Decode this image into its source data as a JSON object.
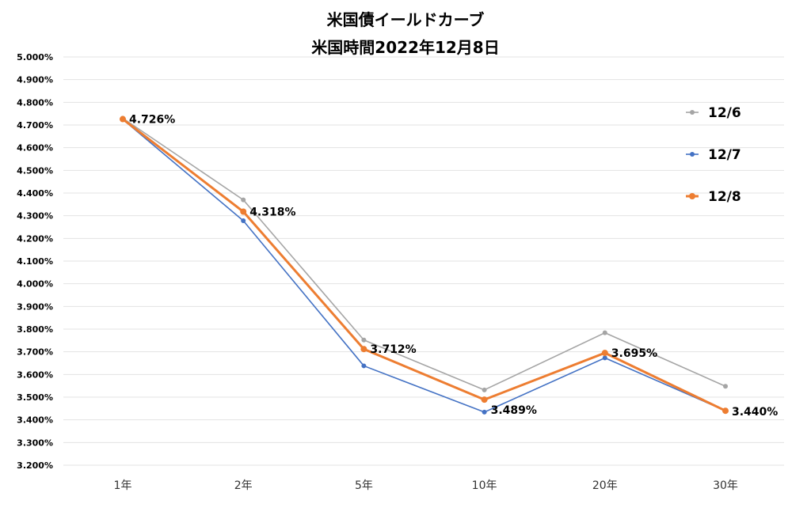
{
  "chart_data": {
    "type": "line",
    "title": "米国債イールドカーブ",
    "subtitle": "米国時間2022年12月8日",
    "categories": [
      "1年",
      "2年",
      "5年",
      "10年",
      "20年",
      "30年"
    ],
    "ylim": [
      3.2,
      5.0
    ],
    "yticks": [
      "5.000%",
      "4.900%",
      "4.800%",
      "4.700%",
      "4.600%",
      "4.500%",
      "4.400%",
      "4.300%",
      "4.200%",
      "4.100%",
      "4.000%",
      "3.900%",
      "3.800%",
      "3.700%",
      "3.600%",
      "3.500%",
      "3.400%",
      "3.300%",
      "3.200%"
    ],
    "grid": true,
    "legend_position": "right",
    "series": [
      {
        "name": "12/6",
        "color": "#a5a5a5",
        "values": [
          4.73,
          4.37,
          3.752,
          3.532,
          3.784,
          3.548
        ],
        "labels": []
      },
      {
        "name": "12/7",
        "color": "#4472c4",
        "values": [
          4.725,
          4.278,
          3.638,
          3.434,
          3.673,
          3.44
        ],
        "labels": []
      },
      {
        "name": "12/8",
        "color": "#ed7d31",
        "values": [
          4.726,
          4.318,
          3.712,
          3.489,
          3.695,
          3.44
        ],
        "labels": [
          "4.726%",
          "4.318%",
          "3.712%",
          "3.489%",
          "3.695%",
          "3.440%"
        ]
      }
    ]
  }
}
